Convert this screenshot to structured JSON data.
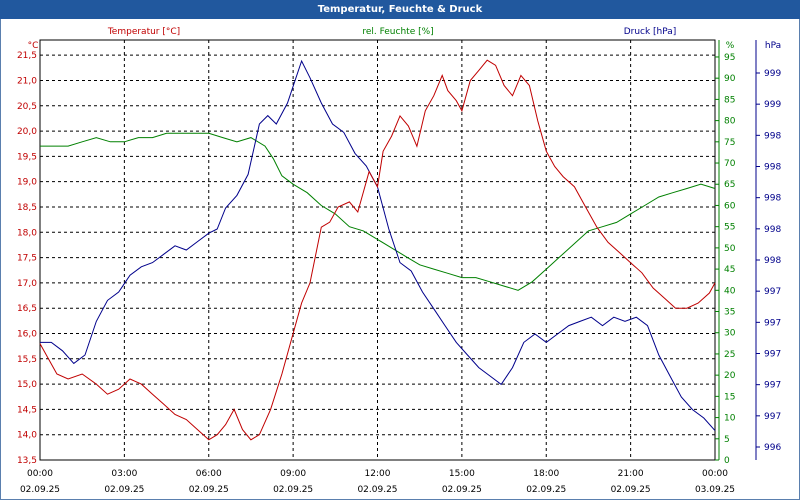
{
  "title": "Temperatur, Feuchte & Druck",
  "chart_data": {
    "type": "line",
    "title": "Temperatur, Feuchte & Druck",
    "grid": true,
    "x_ticks": [
      {
        "time": "00:00",
        "date": "02.09.25"
      },
      {
        "time": "03:00",
        "date": "02.09.25"
      },
      {
        "time": "06:00",
        "date": "02.09.25"
      },
      {
        "time": "09:00",
        "date": "02.09.25"
      },
      {
        "time": "12:00",
        "date": "02.09.25"
      },
      {
        "time": "15:00",
        "date": "02.09.25"
      },
      {
        "time": "18:00",
        "date": "02.09.25"
      },
      {
        "time": "21:00",
        "date": "02.09.25"
      },
      {
        "time": "00:00",
        "date": "03.09.25"
      }
    ],
    "xlim_hours": [
      0,
      24
    ],
    "temperature": {
      "name": "Temperatur [°C]",
      "unit": "°C",
      "color": "#c00000",
      "ylim": [
        13.5,
        21.8
      ],
      "ticks": [
        "21,5",
        "21,0",
        "20,5",
        "20,0",
        "19,5",
        "19,0",
        "18,5",
        "18,0",
        "17,5",
        "17,0",
        "16,5",
        "16,0",
        "15,5",
        "15,0",
        "14,5",
        "14,0",
        "13,5"
      ],
      "x": [
        0,
        0.3,
        0.6,
        1,
        1.5,
        2,
        2.4,
        2.8,
        3.2,
        3.6,
        4,
        4.4,
        4.8,
        5.2,
        5.6,
        6,
        6.3,
        6.6,
        6.9,
        7.2,
        7.5,
        7.8,
        8.2,
        8.6,
        9,
        9.3,
        9.6,
        10,
        10.3,
        10.6,
        11,
        11.3,
        11.7,
        12,
        12.2,
        12.5,
        12.8,
        13.1,
        13.4,
        13.7,
        14,
        14.3,
        14.5,
        14.8,
        15,
        15.3,
        15.6,
        15.9,
        16.2,
        16.5,
        16.8,
        17.1,
        17.4,
        17.7,
        18,
        18.3,
        18.6,
        19,
        19.4,
        19.8,
        20.2,
        20.6,
        21,
        21.4,
        21.8,
        22.2,
        22.6,
        23,
        23.4,
        23.8,
        24
      ],
      "values": [
        15.8,
        15.5,
        15.2,
        15.1,
        15.2,
        15.0,
        14.8,
        14.9,
        15.1,
        15.0,
        14.8,
        14.6,
        14.4,
        14.3,
        14.1,
        13.9,
        14.0,
        14.2,
        14.5,
        14.1,
        13.9,
        14.0,
        14.5,
        15.2,
        16.0,
        16.6,
        17.0,
        18.1,
        18.2,
        18.5,
        18.6,
        18.4,
        19.2,
        18.9,
        19.6,
        19.9,
        20.3,
        20.1,
        19.7,
        20.4,
        20.7,
        21.1,
        20.8,
        20.6,
        20.4,
        21.0,
        21.2,
        21.4,
        21.3,
        20.9,
        20.7,
        21.1,
        20.9,
        20.2,
        19.6,
        19.3,
        19.1,
        18.9,
        18.5,
        18.1,
        17.8,
        17.6,
        17.4,
        17.2,
        16.9,
        16.7,
        16.5,
        16.5,
        16.6,
        16.8,
        17.0
      ]
    },
    "humidity": {
      "name": "rel. Feuchte [%]",
      "unit": "%",
      "color": "#008000",
      "ylim": [
        0,
        99
      ],
      "ticks": [
        "95",
        "90",
        "85",
        "80",
        "75",
        "70",
        "65",
        "60",
        "55",
        "50",
        "45",
        "40",
        "35",
        "30",
        "25",
        "20",
        "15",
        "10",
        "5",
        "0"
      ],
      "x": [
        0,
        0.5,
        1,
        1.5,
        2,
        2.5,
        3,
        3.5,
        4,
        4.5,
        5,
        5.5,
        6,
        6.5,
        7,
        7.5,
        8,
        8.3,
        8.6,
        9,
        9.5,
        10,
        10.5,
        11,
        11.5,
        12,
        12.5,
        13,
        13.5,
        14,
        14.5,
        15,
        15.5,
        16,
        16.5,
        17,
        17.5,
        18,
        18.5,
        19,
        19.5,
        20,
        20.5,
        21,
        21.5,
        22,
        22.5,
        23,
        23.5,
        24
      ],
      "values": [
        74,
        74,
        74,
        75,
        76,
        75,
        75,
        76,
        76,
        77,
        77,
        77,
        77,
        76,
        75,
        76,
        74,
        71,
        67,
        65,
        63,
        60,
        58,
        55,
        54,
        52,
        50,
        48,
        46,
        45,
        44,
        43,
        43,
        42,
        41,
        40,
        42,
        45,
        48,
        51,
        54,
        55,
        56,
        58,
        60,
        62,
        63,
        64,
        65,
        64
      ]
    },
    "pressure": {
      "name": "Druck [hPa]",
      "unit": "hPa",
      "color": "#00008b",
      "ticks": [
        "999",
        "999",
        "998",
        "998",
        "998",
        "998",
        "998",
        "997",
        "997",
        "997",
        "997",
        "997",
        "996"
      ],
      "relative_level_0_to_1": [
        0.28,
        0.28,
        0.26,
        0.23,
        0.25,
        0.33,
        0.38,
        0.4,
        0.44,
        0.46,
        0.47,
        0.49,
        0.51,
        0.5,
        0.52,
        0.54,
        0.55,
        0.6,
        0.63,
        0.68,
        0.8,
        0.82,
        0.8,
        0.85,
        0.95,
        0.91,
        0.85,
        0.8,
        0.78,
        0.73,
        0.7,
        0.65,
        0.55,
        0.47,
        0.45,
        0.4,
        0.36,
        0.32,
        0.28,
        0.25,
        0.22,
        0.2,
        0.18,
        0.22,
        0.28,
        0.3,
        0.28,
        0.3,
        0.32,
        0.33,
        0.34,
        0.32,
        0.34,
        0.33,
        0.34,
        0.32,
        0.25,
        0.2,
        0.15,
        0.12,
        0.1,
        0.07
      ],
      "x": [
        0,
        0.4,
        0.8,
        1.2,
        1.6,
        2,
        2.4,
        2.8,
        3.2,
        3.6,
        4,
        4.4,
        4.8,
        5.2,
        5.6,
        6,
        6.3,
        6.6,
        7,
        7.4,
        7.8,
        8.1,
        8.4,
        8.8,
        9.3,
        9.6,
        10,
        10.4,
        10.8,
        11.2,
        11.6,
        12,
        12.4,
        12.8,
        13.2,
        13.6,
        14,
        14.4,
        14.8,
        15.2,
        15.6,
        16,
        16.4,
        16.8,
        17.2,
        17.6,
        18,
        18.4,
        18.8,
        19.2,
        19.6,
        20,
        20.4,
        20.8,
        21.2,
        21.6,
        22,
        22.4,
        22.8,
        23.2,
        23.6,
        24
      ]
    }
  }
}
